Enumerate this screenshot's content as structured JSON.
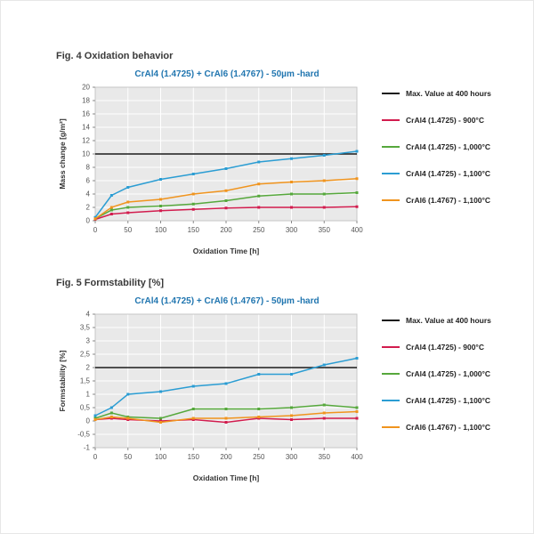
{
  "figures": [
    {
      "heading": "Fig. 4 Oxidation behavior"
    },
    {
      "heading": "Fig. 5 Formstability [%]"
    }
  ],
  "colors": {
    "title_blue": "#2176b0",
    "plot_background": "#e9e9e9",
    "gridline": "#ffffff",
    "max_line": "#1a1a1a",
    "series_900c": "#d21c4e",
    "series_1000c": "#56a83c",
    "series_1100c_4725": "#2b9dd3",
    "series_1100c_4767": "#f0941e"
  },
  "chart_data": [
    {
      "type": "line",
      "title": "CrAl4 (1.4725) + CrAl6 (1.4767) - 50µm -hard",
      "xlabel": "Oxidation Time [h]",
      "ylabel": "Mass change [g/m²]",
      "x": [
        0,
        25,
        50,
        100,
        150,
        200,
        250,
        300,
        350,
        400
      ],
      "xticks": [
        0,
        50,
        100,
        150,
        200,
        250,
        300,
        350,
        400
      ],
      "ylim": [
        0,
        20
      ],
      "yticks": [
        0,
        2,
        4,
        6,
        8,
        10,
        12,
        14,
        16,
        18,
        20
      ],
      "ytick_labels": [
        "0",
        "2",
        "4",
        "6",
        "8",
        "10",
        "12",
        "14",
        "16",
        "18",
        "20"
      ],
      "grid": true,
      "legend_position": "right",
      "max_line": {
        "label": "Max. Value at 400 hours",
        "value": 10,
        "color": "#1a1a1a"
      },
      "series": [
        {
          "name": "CrAl4 (1.4725) - 900°C",
          "color": "#d21c4e",
          "values": [
            0.2,
            1.0,
            1.2,
            1.5,
            1.7,
            1.9,
            2.0,
            2.0,
            2.0,
            2.1
          ]
        },
        {
          "name": "CrAl4 (1.4725) - 1,000°C",
          "color": "#56a83c",
          "values": [
            0.3,
            1.6,
            2.0,
            2.2,
            2.5,
            3.0,
            3.7,
            4.0,
            4.0,
            4.2
          ]
        },
        {
          "name": "CrAl4 (1.4725) - 1,100°C",
          "color": "#2b9dd3",
          "values": [
            0.5,
            3.8,
            5.0,
            6.2,
            7.0,
            7.8,
            8.8,
            9.3,
            9.8,
            10.4
          ]
        },
        {
          "name": "CrAl6 (1.4767) - 1,100°C",
          "color": "#f0941e",
          "values": [
            0.3,
            2.0,
            2.8,
            3.2,
            4.0,
            4.5,
            5.5,
            5.8,
            6.0,
            6.3
          ]
        }
      ]
    },
    {
      "type": "line",
      "title": "CrAl4 (1.4725) + CrAl6 (1.4767) - 50µm -hard",
      "xlabel": "Oxidation Time [h]",
      "ylabel": "Formstability [%]",
      "x": [
        0,
        25,
        50,
        100,
        150,
        200,
        250,
        300,
        350,
        400
      ],
      "xticks": [
        0,
        50,
        100,
        150,
        200,
        250,
        300,
        350,
        400
      ],
      "ylim": [
        -1,
        4
      ],
      "yticks": [
        -1,
        -0.5,
        0,
        0.5,
        1,
        1.5,
        2,
        2.5,
        3,
        3.5,
        4
      ],
      "ytick_labels": [
        "-1",
        "-0,5",
        "0",
        "0,5",
        "1",
        "1,5",
        "2",
        "2,5",
        "3",
        "3,5",
        "4"
      ],
      "grid": true,
      "legend_position": "right",
      "max_line": {
        "label": "Max. Value at 400 hours",
        "value": 2,
        "color": "#1a1a1a"
      },
      "series": [
        {
          "name": "CrAl4 (1.4725) - 900°C",
          "color": "#d21c4e",
          "values": [
            0.05,
            0.1,
            0.05,
            0.0,
            0.05,
            -0.05,
            0.1,
            0.05,
            0.1,
            0.1
          ]
        },
        {
          "name": "CrAl4 (1.4725) - 1,000°C",
          "color": "#56a83c",
          "values": [
            0.1,
            0.3,
            0.15,
            0.1,
            0.45,
            0.45,
            0.45,
            0.5,
            0.6,
            0.5
          ]
        },
        {
          "name": "CrAl4 (1.4725) - 1,100°C",
          "color": "#2b9dd3",
          "values": [
            0.2,
            0.5,
            1.0,
            1.1,
            1.3,
            1.4,
            1.75,
            1.75,
            2.1,
            2.35
          ]
        },
        {
          "name": "CrAl6 (1.4767) - 1,100°C",
          "color": "#f0941e",
          "values": [
            0.05,
            0.15,
            0.1,
            -0.05,
            0.1,
            0.1,
            0.15,
            0.2,
            0.3,
            0.35
          ]
        }
      ]
    }
  ]
}
